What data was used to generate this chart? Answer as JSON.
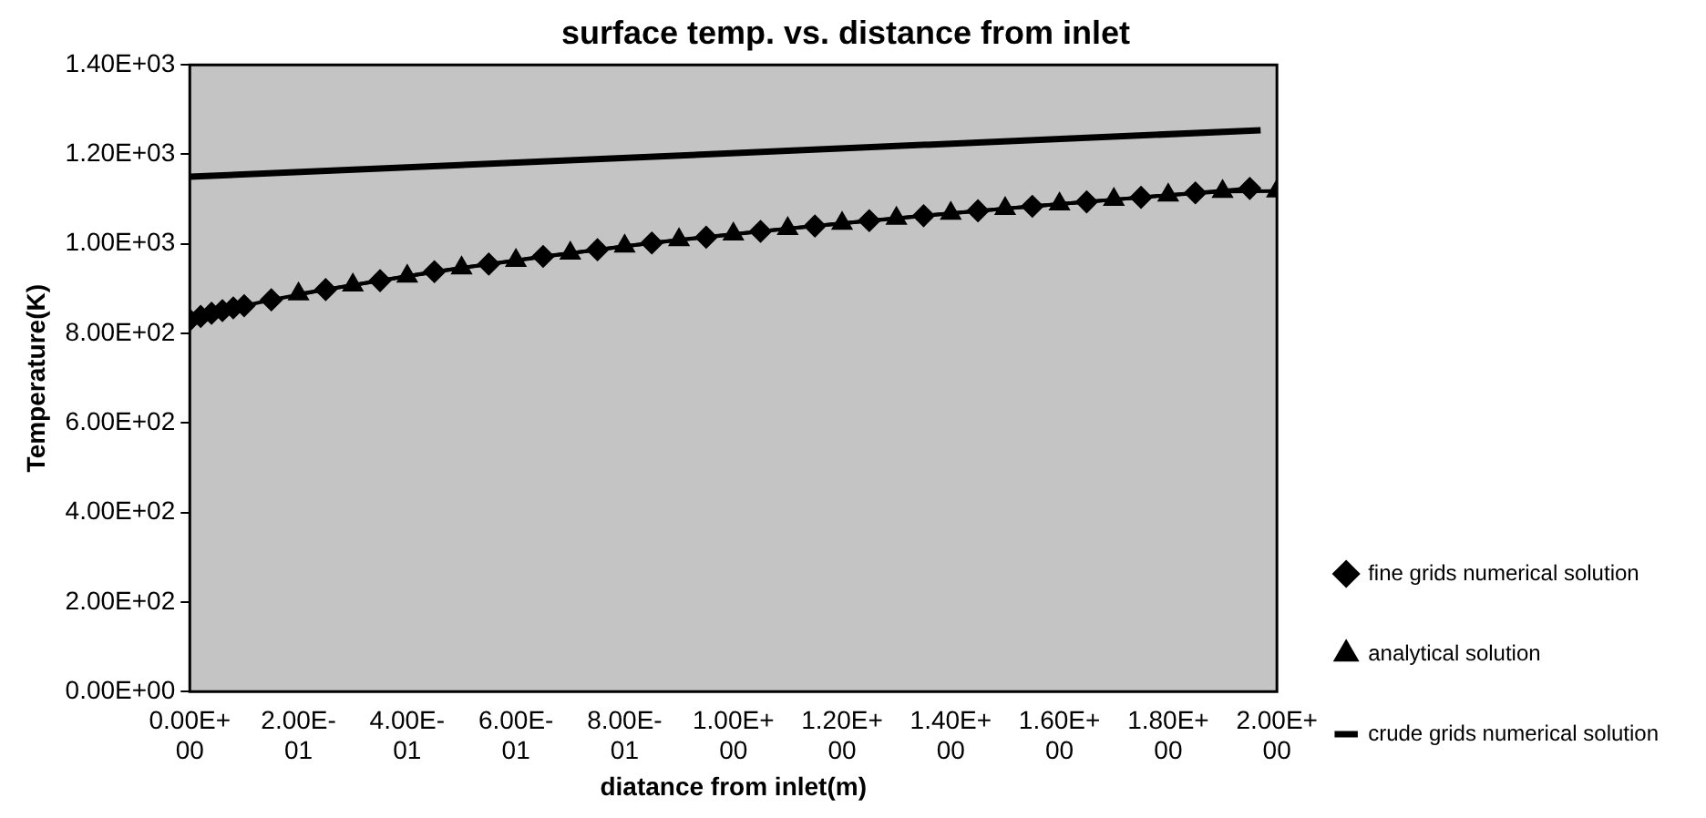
{
  "chart_data": {
    "type": "line",
    "title": "surface temp. vs. distance from inlet",
    "xlabel": "diatance from inlet(m)",
    "ylabel": "Temperature(K)",
    "xlim": [
      0,
      2
    ],
    "ylim": [
      0,
      1400
    ],
    "xticks": [
      {
        "value": 0,
        "label": "0.00E+00"
      },
      {
        "value": 0.2,
        "label": "2.00E-01"
      },
      {
        "value": 0.4,
        "label": "4.00E-01"
      },
      {
        "value": 0.6,
        "label": "6.00E-01"
      },
      {
        "value": 0.8,
        "label": "8.00E-01"
      },
      {
        "value": 1,
        "label": "1.00E+00"
      },
      {
        "value": 1.2,
        "label": "1.20E+00"
      },
      {
        "value": 1.4,
        "label": "1.40E+00"
      },
      {
        "value": 1.6,
        "label": "1.60E+00"
      },
      {
        "value": 1.8,
        "label": "1.80E+00"
      },
      {
        "value": 2,
        "label": "2.00E+00"
      }
    ],
    "yticks": [
      {
        "value": 0,
        "label": "0.00E+00"
      },
      {
        "value": 200,
        "label": "2.00E+02"
      },
      {
        "value": 400,
        "label": "4.00E+02"
      },
      {
        "value": 600,
        "label": "6.00E+02"
      },
      {
        "value": 800,
        "label": "8.00E+02"
      },
      {
        "value": 1000,
        "label": "1.00E+03"
      },
      {
        "value": 1200,
        "label": "1.20E+03"
      },
      {
        "value": 1400,
        "label": "1.40E+03"
      }
    ],
    "grid": false,
    "legend": "bottom right",
    "series": [
      {
        "name": "fine grids numerical solution",
        "color": "#000000",
        "marker": "diamond",
        "x": [
          0,
          0.02,
          0.04,
          0.06,
          0.08,
          0.1,
          0.15,
          0.25,
          0.35,
          0.45,
          0.55,
          0.65,
          0.75,
          0.85,
          0.95,
          1.05,
          1.15,
          1.25,
          1.35,
          1.45,
          1.55,
          1.65,
          1.75,
          1.85,
          1.95
        ],
        "values": [
          830,
          838,
          845,
          851,
          857,
          862,
          875,
          898,
          918,
          938,
          955,
          972,
          987,
          1002,
          1015,
          1028,
          1040,
          1052,
          1063,
          1074,
          1084,
          1094,
          1104,
          1114,
          1124
        ]
      },
      {
        "name": "analytical solution",
        "color": "#000000",
        "marker": "triangle",
        "x": [
          0.2,
          0.3,
          0.4,
          0.5,
          0.6,
          0.7,
          0.8,
          0.9,
          1,
          1.1,
          1.2,
          1.3,
          1.4,
          1.5,
          1.6,
          1.7,
          1.8,
          1.9,
          2
        ],
        "values": [
          888,
          908,
          928,
          946,
          963,
          979,
          995,
          1009,
          1022,
          1034,
          1046,
          1057,
          1068,
          1079,
          1089,
          1099,
          1109,
          1117,
          1118
        ]
      },
      {
        "name": "crude grids numerical solution",
        "color": "#000000",
        "marker": "none",
        "x": [
          0,
          1.97
        ],
        "values": [
          1150,
          1254
        ]
      }
    ]
  }
}
